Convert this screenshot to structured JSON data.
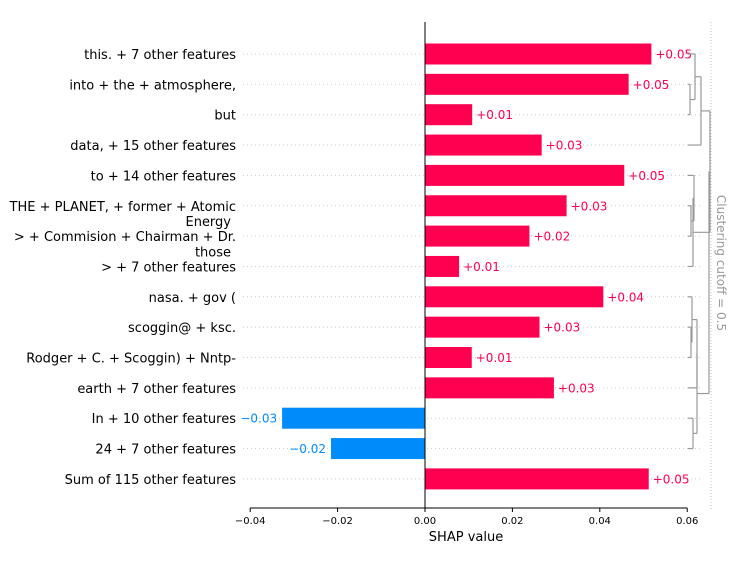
{
  "chart_data": {
    "type": "bar",
    "orientation": "horizontal",
    "xlabel": "SHAP value",
    "xlim": [
      -0.04,
      0.06
    ],
    "xticks": [
      -0.04,
      -0.02,
      0.0,
      0.02,
      0.04,
      0.06
    ],
    "xtick_labels": [
      "−0.04",
      "−0.02",
      "0.00",
      "0.02",
      "0.04",
      "0.06"
    ],
    "clustering_label": "Clustering cutoff = 0.5",
    "positive_color": "#ff0051",
    "negative_color": "#008bfb",
    "bars": [
      {
        "label": [
          "this. + 7 other features"
        ],
        "value": 0.0518,
        "text": "+0.05"
      },
      {
        "label": [
          "into + the + atmosphere,"
        ],
        "value": 0.0466,
        "text": "+0.05"
      },
      {
        "label": [
          "but"
        ],
        "value": 0.0108,
        "text": "+0.01"
      },
      {
        "label": [
          "data, + 15 other features"
        ],
        "value": 0.0267,
        "text": "+0.03"
      },
      {
        "label": [
          "to + 14 other features"
        ],
        "value": 0.0456,
        "text": "+0.05"
      },
      {
        "label": [
          "THE + PLANET, + former + Atomic"
        ],
        "value": 0.0324,
        "text": "+0.03"
      },
      {
        "label": [
          "Energy",
          "> + Commision + Chairman + Dr."
        ],
        "value": 0.0239,
        "text": "+0.02"
      },
      {
        "label": [
          "those",
          "> + 7 other features"
        ],
        "value": 0.0078,
        "text": "+0.01"
      },
      {
        "label": [
          "nasa. + gov ("
        ],
        "value": 0.0408,
        "text": "+0.04"
      },
      {
        "label": [
          "scoggin@ + ksc."
        ],
        "value": 0.0262,
        "text": "+0.03"
      },
      {
        "label": [
          "Rodger + C. + Scoggin) + Nntp-"
        ],
        "value": 0.0107,
        "text": "+0.01"
      },
      {
        "label": [
          "earth + 7 other features"
        ],
        "value": 0.0295,
        "text": "+0.03"
      },
      {
        "label": [
          "In + 10 other features"
        ],
        "value": -0.0327,
        "text": "−0.03"
      },
      {
        "label": [
          "24 + 7 other features"
        ],
        "value": -0.0215,
        "text": "−0.02"
      },
      {
        "label": [
          "Sum of 115 other features"
        ],
        "value": 0.0512,
        "text": "+0.05"
      }
    ]
  }
}
